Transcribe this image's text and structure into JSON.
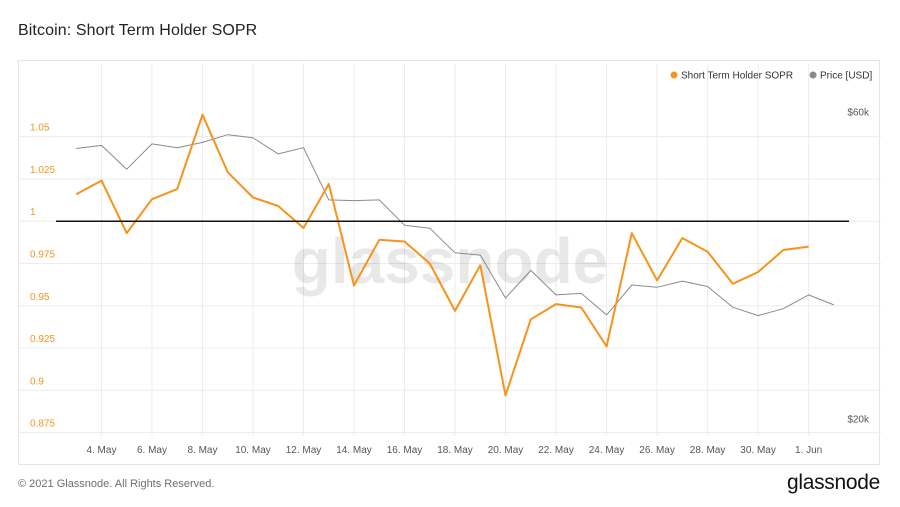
{
  "title": "Bitcoin: Short Term Holder SOPR",
  "footer": {
    "copyright": "© 2021 Glassnode. All Rights Reserved.",
    "brand": "glassnode"
  },
  "watermark": "glassnode",
  "colors": {
    "sopr": "#f7931a",
    "price": "#8a8a8a",
    "baseline": "#111111",
    "grid": "#ececec"
  },
  "chart_data": {
    "type": "line",
    "title": "Bitcoin: Short Term Holder SOPR",
    "legend_position": "top-right",
    "grid": true,
    "x_ticks": [
      "4. May",
      "6. May",
      "8. May",
      "10. May",
      "12. May",
      "14. May",
      "16. May",
      "18. May",
      "20. May",
      "22. May",
      "24. May",
      "26. May",
      "28. May",
      "30. May",
      "1. Jun"
    ],
    "x_range": [
      2.2,
      33.6
    ],
    "left_axis": {
      "ticks": [
        "1.05",
        "1.025",
        "1",
        "0.975",
        "0.95",
        "0.925",
        "0.9",
        "0.875"
      ],
      "range": [
        0.873,
        1.077
      ],
      "reference_line": 1
    },
    "right_axis": {
      "ticks": [
        "$60k",
        "$20k"
      ],
      "range": [
        19000,
        64000
      ]
    },
    "series": [
      {
        "name": "Short Term Holder SOPR",
        "axis": "left",
        "x": [
          3,
          4,
          5,
          6,
          7,
          8,
          9,
          10,
          11,
          12,
          13,
          14,
          15,
          16,
          17,
          18,
          19,
          20,
          21,
          22,
          23,
          24,
          25,
          26,
          27,
          28,
          29,
          30,
          31,
          32
        ],
        "values": [
          1.016,
          1.024,
          0.993,
          1.013,
          1.019,
          1.063,
          1.029,
          1.014,
          1.009,
          0.996,
          1.022,
          0.962,
          0.989,
          0.988,
          0.975,
          0.947,
          0.974,
          0.897,
          0.942,
          0.951,
          0.949,
          0.926,
          0.993,
          0.965,
          0.99,
          0.982,
          0.963,
          0.97,
          0.983,
          0.985
        ]
      },
      {
        "name": "Price [USD]",
        "axis": "right",
        "x": [
          3,
          4,
          5,
          6,
          7,
          8,
          9,
          10,
          11,
          12,
          13,
          14,
          15,
          16,
          17,
          18,
          19,
          20,
          21,
          22,
          23,
          24,
          25,
          26,
          27,
          28,
          29,
          30,
          31,
          32,
          33
        ],
        "values": [
          56500,
          56900,
          53800,
          57100,
          56600,
          57300,
          58300,
          57900,
          55800,
          56600,
          49800,
          49700,
          49800,
          46500,
          46100,
          42900,
          42600,
          37000,
          40600,
          37400,
          37600,
          34800,
          38700,
          38400,
          39200,
          38500,
          35800,
          34700,
          35600,
          37400,
          36100
        ]
      }
    ]
  }
}
